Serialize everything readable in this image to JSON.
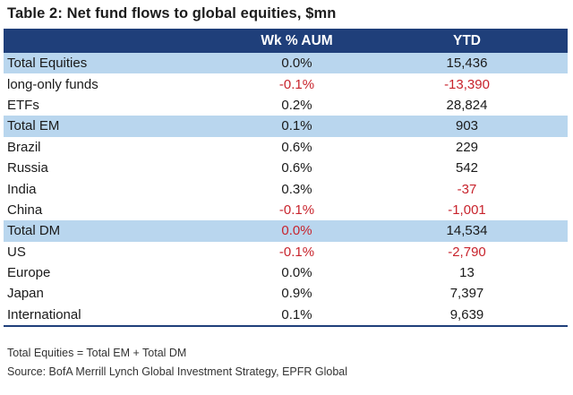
{
  "title": "Table 2: Net fund flows to global equities, $mn",
  "headers": [
    "",
    "Wk % AUM",
    "YTD"
  ],
  "rows": [
    {
      "label": "Total Equities",
      "wk": "0.0%",
      "ytd": "15,436",
      "highlight": true,
      "wk_neg": false,
      "ytd_neg": false
    },
    {
      "label": "long-only funds",
      "wk": "-0.1%",
      "ytd": "-13,390",
      "highlight": false,
      "wk_neg": true,
      "ytd_neg": true
    },
    {
      "label": "ETFs",
      "wk": "0.2%",
      "ytd": "28,824",
      "highlight": false,
      "wk_neg": false,
      "ytd_neg": false
    },
    {
      "label": "Total EM",
      "wk": "0.1%",
      "ytd": "903",
      "highlight": true,
      "wk_neg": false,
      "ytd_neg": false
    },
    {
      "label": "Brazil",
      "wk": "0.6%",
      "ytd": "229",
      "highlight": false,
      "wk_neg": false,
      "ytd_neg": false
    },
    {
      "label": "Russia",
      "wk": "0.6%",
      "ytd": "542",
      "highlight": false,
      "wk_neg": false,
      "ytd_neg": false
    },
    {
      "label": "India",
      "wk": "0.3%",
      "ytd": "-37",
      "highlight": false,
      "wk_neg": false,
      "ytd_neg": true
    },
    {
      "label": "China",
      "wk": "-0.1%",
      "ytd": "-1,001",
      "highlight": false,
      "wk_neg": true,
      "ytd_neg": true
    },
    {
      "label": "Total DM",
      "wk": "0.0%",
      "ytd": "14,534",
      "highlight": true,
      "wk_neg": true,
      "ytd_neg": false
    },
    {
      "label": "US",
      "wk": "-0.1%",
      "ytd": "-2,790",
      "highlight": false,
      "wk_neg": true,
      "ytd_neg": true
    },
    {
      "label": "Europe",
      "wk": "0.0%",
      "ytd": "13",
      "highlight": false,
      "wk_neg": false,
      "ytd_neg": false
    },
    {
      "label": "Japan",
      "wk": "0.9%",
      "ytd": "7,397",
      "highlight": false,
      "wk_neg": false,
      "ytd_neg": false
    },
    {
      "label": "International",
      "wk": "0.1%",
      "ytd": "9,639",
      "highlight": false,
      "wk_neg": false,
      "ytd_neg": false
    }
  ],
  "notes": [
    "Total Equities = Total EM + Total DM",
    "Source: BofA Merrill Lynch Global Investment Strategy, EPFR Global"
  ],
  "colors": {
    "header_bg": "#1f3f7a",
    "highlight_bg": "#b9d6ee",
    "negative": "#c8232c"
  }
}
